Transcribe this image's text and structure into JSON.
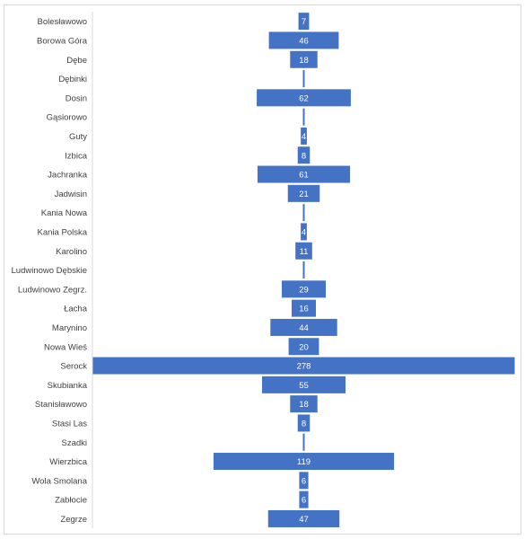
{
  "chart_data": {
    "type": "bar",
    "orientation": "horizontal-centered",
    "bar_color": "#4472C4",
    "label_color": "#FFFFFF",
    "axis_label_color": "#404040",
    "grid": false,
    "categories": [
      "Bolesławowo",
      "Borowa Góra",
      "Dębe",
      "Dębinki",
      "Dosin",
      "Gąsiorowo",
      "Guty",
      "Izbica",
      "Jachranka",
      "Jadwisin",
      "Kania Nowa",
      "Kania Polska",
      "Karolino",
      "Ludwinowo Dębskie",
      "Ludwinowo Zegrz.",
      "Łacha",
      "Marynino",
      "Nowa Wieś",
      "Serock",
      "Skubianka",
      "Stanisławowo",
      "Stasi Las",
      "Szadki",
      "Wierzbica",
      "Wola Smolana",
      "Zabłocie",
      "Zegrze"
    ],
    "values": [
      7,
      46,
      18,
      0,
      62,
      0,
      4,
      8,
      61,
      21,
      0,
      4,
      11,
      0,
      29,
      16,
      44,
      20,
      278,
      55,
      18,
      8,
      0,
      119,
      6,
      6,
      47
    ],
    "value_labels": [
      "7",
      "46",
      "18",
      "",
      "62",
      "",
      "4",
      "8",
      "61",
      "21",
      "",
      "4",
      "11",
      "",
      "29",
      "16",
      "44",
      "20",
      "278",
      "55",
      "18",
      "8",
      "",
      "119",
      "6",
      "6",
      "47"
    ]
  }
}
